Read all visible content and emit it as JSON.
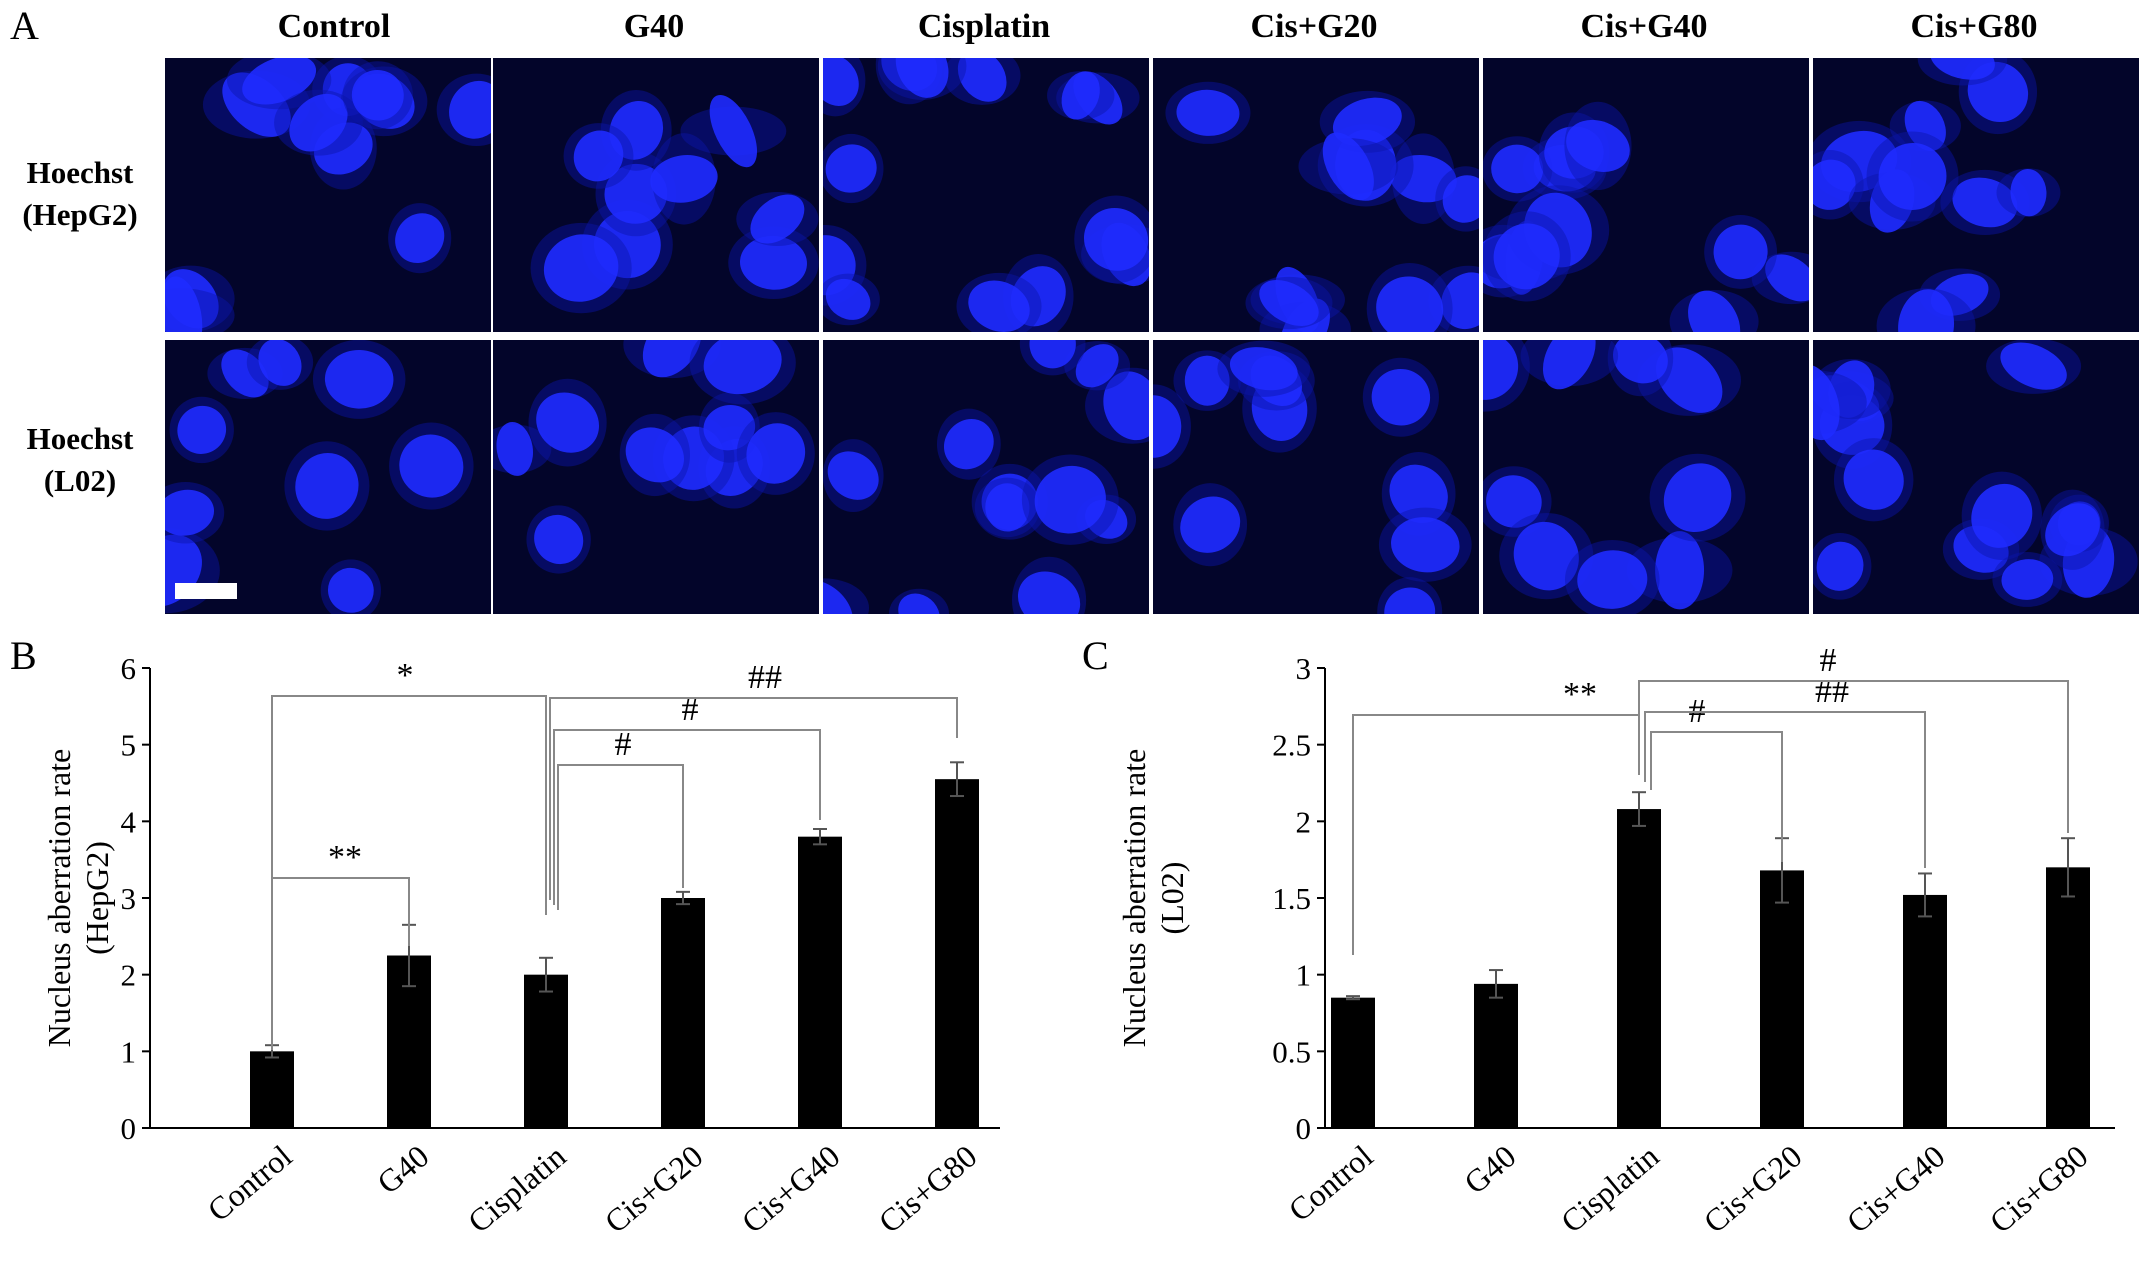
{
  "panel_a": {
    "letter": "A",
    "columns": [
      "Control",
      "G40",
      "Cisplatin",
      "Cis+G20",
      "Cis+G40",
      "Cis+G80"
    ],
    "rows": [
      {
        "line1": "Hoechst",
        "line2": "(HepG2)"
      },
      {
        "line1": "Hoechst",
        "line2": "(L02)"
      }
    ],
    "stain_color": "#1f2bff"
  },
  "chart_data": [
    {
      "panel": "B",
      "type": "bar",
      "categories": [
        "Control",
        "G40",
        "Cisplatin",
        "Cis+G20",
        "Cis+G40",
        "Cis+G80"
      ],
      "values": [
        1.0,
        2.25,
        2.0,
        3.0,
        3.8,
        4.55
      ],
      "errors": [
        0.08,
        0.4,
        0.22,
        0.08,
        0.1,
        0.22
      ],
      "ylabel_line1": "Nucleus aberration rate",
      "ylabel_line2": "(HepG2)",
      "ylim": [
        0,
        6
      ],
      "yticks": [
        "0",
        "1",
        "2",
        "3",
        "4",
        "5",
        "6"
      ],
      "bar_color": "#000000",
      "grid": false,
      "significance": [
        {
          "from": "Control",
          "to": "G40",
          "label": "**"
        },
        {
          "from": "Control",
          "to": "Cisplatin",
          "label": "*"
        },
        {
          "from": "Cisplatin",
          "to": "Cis+G20",
          "label": "#"
        },
        {
          "from": "Cisplatin",
          "to": "Cis+G40",
          "label": "#"
        },
        {
          "from": "Cisplatin",
          "to": "Cis+G80",
          "label": "##"
        }
      ]
    },
    {
      "panel": "C",
      "type": "bar",
      "categories": [
        "Control",
        "G40",
        "Cisplatin",
        "Cis+G20",
        "Cis+G40",
        "Cis+G80"
      ],
      "values": [
        0.85,
        0.94,
        2.08,
        1.68,
        1.52,
        1.7
      ],
      "errors": [
        0.01,
        0.09,
        0.11,
        0.21,
        0.14,
        0.19
      ],
      "ylabel_line1": "Nucleus aberration rate",
      "ylabel_line2": "(L02)",
      "ylim": [
        0,
        3
      ],
      "yticks": [
        "0",
        "0.5",
        "1",
        "1.5",
        "2",
        "2.5",
        "3"
      ],
      "bar_color": "#000000",
      "grid": false,
      "significance": [
        {
          "from": "Control",
          "to": "Cisplatin",
          "label": "**"
        },
        {
          "from": "Cisplatin",
          "to": "Cis+G20",
          "label": "#"
        },
        {
          "from": "Cisplatin",
          "to": "Cis+G40",
          "label": "##"
        },
        {
          "from": "Cisplatin",
          "to": "Cis+G80",
          "label": "#"
        }
      ]
    }
  ]
}
